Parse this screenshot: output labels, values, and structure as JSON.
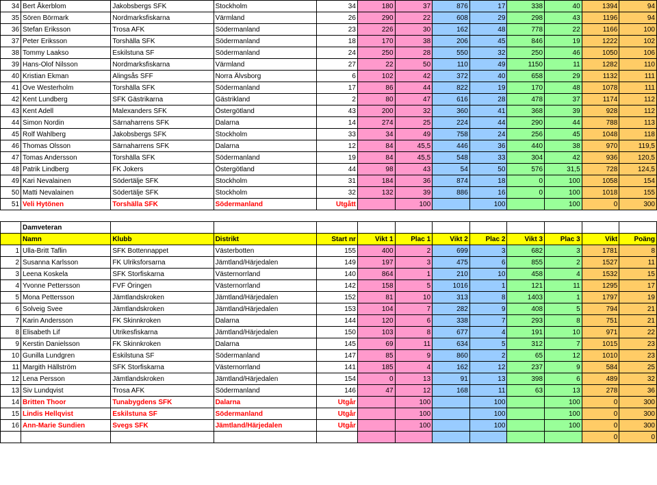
{
  "cols": {
    "widths": [
      22,
      90,
      110,
      110,
      44,
      40,
      40,
      40,
      40,
      40,
      40,
      40,
      40
    ]
  },
  "table1": {
    "rows": [
      {
        "n": "34",
        "name": "Bert Åkerblom",
        "club": "Jakobsbergs SFK",
        "dist": "Stockholm",
        "s": "34",
        "v1": "180",
        "p1": "37",
        "v2": "876",
        "p2": "17",
        "v3": "338",
        "p3": "40",
        "vk": "1394",
        "pt": "94"
      },
      {
        "n": "35",
        "name": "Sören Börmark",
        "club": "Nordmarksfiskarna",
        "dist": "Värmland",
        "s": "26",
        "v1": "290",
        "p1": "22",
        "v2": "608",
        "p2": "29",
        "v3": "298",
        "p3": "43",
        "vk": "1196",
        "pt": "94"
      },
      {
        "n": "36",
        "name": "Stefan Eriksson",
        "club": "Trosa AFK",
        "dist": "Södermanland",
        "s": "23",
        "v1": "226",
        "p1": "30",
        "v2": "162",
        "p2": "48",
        "v3": "778",
        "p3": "22",
        "vk": "1166",
        "pt": "100"
      },
      {
        "n": "37",
        "name": "Peter Eriksson",
        "club": "Torshälla SFK",
        "dist": "Södermanland",
        "s": "18",
        "v1": "170",
        "p1": "38",
        "v2": "206",
        "p2": "45",
        "v3": "846",
        "p3": "19",
        "vk": "1222",
        "pt": "102"
      },
      {
        "n": "38",
        "name": "Tommy Laakso",
        "club": "Eskilstuna SF",
        "dist": "Södermanland",
        "s": "24",
        "v1": "250",
        "p1": "28",
        "v2": "550",
        "p2": "32",
        "v3": "250",
        "p3": "46",
        "vk": "1050",
        "pt": "106"
      },
      {
        "n": "39",
        "name": "Hans-Olof Nilsson",
        "club": "Nordmarksfiskarna",
        "dist": "Värmland",
        "s": "27",
        "v1": "22",
        "p1": "50",
        "v2": "110",
        "p2": "49",
        "v3": "1150",
        "p3": "11",
        "vk": "1282",
        "pt": "110"
      },
      {
        "n": "40",
        "name": "Kristian Ekman",
        "club": "Alingsås SFF",
        "dist": "Norra Älvsborg",
        "s": "6",
        "v1": "102",
        "p1": "42",
        "v2": "372",
        "p2": "40",
        "v3": "658",
        "p3": "29",
        "vk": "1132",
        "pt": "111"
      },
      {
        "n": "41",
        "name": "Ove Westerholm",
        "club": "Torshälla SFK",
        "dist": "Södermanland",
        "s": "17",
        "v1": "86",
        "p1": "44",
        "v2": "822",
        "p2": "19",
        "v3": "170",
        "p3": "48",
        "vk": "1078",
        "pt": "111"
      },
      {
        "n": "42",
        "name": "Kent Lundberg",
        "club": "SFK Gästrikarna",
        "dist": "Gästrikland",
        "s": "2",
        "v1": "80",
        "p1": "47",
        "v2": "616",
        "p2": "28",
        "v3": "478",
        "p3": "37",
        "vk": "1174",
        "pt": "112"
      },
      {
        "n": "43",
        "name": "Kent Adell",
        "club": "Malexanders SFK",
        "dist": "Östergötland",
        "s": "43",
        "v1": "200",
        "p1": "32",
        "v2": "360",
        "p2": "41",
        "v3": "368",
        "p3": "39",
        "vk": "928",
        "pt": "112"
      },
      {
        "n": "44",
        "name": "Simon  Nordin",
        "club": "Särnaharrens  SFK",
        "dist": "Dalarna",
        "s": "14",
        "v1": "274",
        "p1": "25",
        "v2": "224",
        "p2": "44",
        "v3": "290",
        "p3": "44",
        "vk": "788",
        "pt": "113"
      },
      {
        "n": "45",
        "name": "Rolf Wahlberg",
        "club": "Jakobsbergs SFK",
        "dist": "Stockholm",
        "s": "33",
        "v1": "34",
        "p1": "49",
        "v2": "758",
        "p2": "24",
        "v3": "256",
        "p3": "45",
        "vk": "1048",
        "pt": "118"
      },
      {
        "n": "46",
        "name": "Thomas  Olsson",
        "club": "Särnaharrens  SFK",
        "dist": "Dalarna",
        "s": "12",
        "v1": "84",
        "p1": "45,5",
        "v2": "446",
        "p2": "36",
        "v3": "440",
        "p3": "38",
        "vk": "970",
        "pt": "119,5"
      },
      {
        "n": "47",
        "name": "Tomas Andersson",
        "club": "Torshälla SFK",
        "dist": "Södermanland",
        "s": "19",
        "v1": "84",
        "p1": "45,5",
        "v2": "548",
        "p2": "33",
        "v3": "304",
        "p3": "42",
        "vk": "936",
        "pt": "120,5"
      },
      {
        "n": "48",
        "name": "Patrik Lindberg",
        "club": "FK Jokers",
        "dist": "Östergötland",
        "s": "44",
        "v1": "98",
        "p1": "43",
        "v2": "54",
        "p2": "50",
        "v3": "576",
        "p3": "31,5",
        "vk": "728",
        "pt": "124,5"
      },
      {
        "n": "49",
        "name": "Kari Nevalainen",
        "club": "Södertälje SFK",
        "dist": "Stockholm",
        "s": "31",
        "v1": "184",
        "p1": "36",
        "v2": "874",
        "p2": "18",
        "v3": "0",
        "p3": "100",
        "vk": "1058",
        "pt": "154"
      },
      {
        "n": "50",
        "name": "Matti Nevalainen",
        "club": "Södertälje SFK",
        "dist": "Stockholm",
        "s": "32",
        "v1": "132",
        "p1": "39",
        "v2": "886",
        "p2": "16",
        "v3": "0",
        "p3": "100",
        "vk": "1018",
        "pt": "155"
      },
      {
        "n": "51",
        "name": "Veli Hytönen",
        "club": "Torshälla SFK",
        "dist": "Södermanland",
        "s": "Utgått",
        "v1": "",
        "p1": "100",
        "v2": "",
        "p2": "100",
        "v3": "",
        "p3": "100",
        "vk": "0",
        "pt": "300",
        "red": true
      }
    ]
  },
  "section2": {
    "title": "Damveteran",
    "headers": [
      "",
      "Namn",
      "Klubb",
      "Distrikt",
      "Start nr",
      "Vikt 1",
      "Plac 1",
      "Vikt 2",
      "Plac 2",
      "Vikt 3",
      "Plac 3",
      "Vikt",
      "Poäng"
    ],
    "rows": [
      {
        "n": "1",
        "name": "Ulla-Britt Taflin",
        "club": "SFK Bottennappet",
        "dist": "Västerbotten",
        "s": "155",
        "v1": "400",
        "p1": "2",
        "v2": "699",
        "p2": "3",
        "v3": "682",
        "p3": "3",
        "vk": "1781",
        "pt": "8"
      },
      {
        "n": "2",
        "name": "Susanna Karlsson",
        "club": "FK Ulriksforsarna",
        "dist": "Jämtland/Härjedalen",
        "s": "149",
        "v1": "197",
        "p1": "3",
        "v2": "475",
        "p2": "6",
        "v3": "855",
        "p3": "2",
        "vk": "1527",
        "pt": "11"
      },
      {
        "n": "3",
        "name": "Leena Koskela",
        "club": "SFK Storfiskarna",
        "dist": "Västernorrland",
        "s": "140",
        "v1": "864",
        "p1": "1",
        "v2": "210",
        "p2": "10",
        "v3": "458",
        "p3": "4",
        "vk": "1532",
        "pt": "15"
      },
      {
        "n": "4",
        "name": "Yvonne Pettersson",
        "club": "FVF Öringen",
        "dist": "Västernorrland",
        "s": "142",
        "v1": "158",
        "p1": "5",
        "v2": "1016",
        "p2": "1",
        "v3": "121",
        "p3": "11",
        "vk": "1295",
        "pt": "17"
      },
      {
        "n": "5",
        "name": "Mona Pettersson",
        "club": "Jämtlandskroken",
        "dist": "Jämtland/Härjedalen",
        "s": "152",
        "v1": "81",
        "p1": "10",
        "v2": "313",
        "p2": "8",
        "v3": "1403",
        "p3": "1",
        "vk": "1797",
        "pt": "19"
      },
      {
        "n": "6",
        "name": "Solveig Svee",
        "club": "Jämtlandskroken",
        "dist": "Jämtland/Härjedalen",
        "s": "153",
        "v1": "104",
        "p1": "7",
        "v2": "282",
        "p2": "9",
        "v3": "408",
        "p3": "5",
        "vk": "794",
        "pt": "21"
      },
      {
        "n": "7",
        "name": "Karin  Andersson",
        "club": "FK  Skinnkroken",
        "dist": "Dalarna",
        "s": "144",
        "v1": "120",
        "p1": "6",
        "v2": "338",
        "p2": "7",
        "v3": "293",
        "p3": "8",
        "vk": "751",
        "pt": "21"
      },
      {
        "n": "8",
        "name": "Elisabeth Lif",
        "club": "Utrikesfiskarna",
        "dist": "Jämtland/Härjedalen",
        "s": "150",
        "v1": "103",
        "p1": "8",
        "v2": "677",
        "p2": "4",
        "v3": "191",
        "p3": "10",
        "vk": "971",
        "pt": "22"
      },
      {
        "n": "9",
        "name": "Kerstin  Danielsson",
        "club": "FK  Skinnkroken",
        "dist": "Dalarna",
        "s": "145",
        "v1": "69",
        "p1": "11",
        "v2": "634",
        "p2": "5",
        "v3": "312",
        "p3": "7",
        "vk": "1015",
        "pt": "23"
      },
      {
        "n": "10",
        "name": "Gunilla Lundgren",
        "club": "Eskilstuna SF",
        "dist": "Södermanland",
        "s": "147",
        "v1": "85",
        "p1": "9",
        "v2": "860",
        "p2": "2",
        "v3": "65",
        "p3": "12",
        "vk": "1010",
        "pt": "23"
      },
      {
        "n": "11",
        "name": "Margith Hällström",
        "club": "SFK Storfiskarna",
        "dist": "Västernorrland",
        "s": "141",
        "v1": "185",
        "p1": "4",
        "v2": "162",
        "p2": "12",
        "v3": "237",
        "p3": "9",
        "vk": "584",
        "pt": "25"
      },
      {
        "n": "12",
        "name": "Lena Persson",
        "club": "Jämtlandskroken",
        "dist": "Jämtland/Härjedalen",
        "s": "154",
        "v1": "0",
        "p1": "13",
        "v2": "91",
        "p2": "13",
        "v3": "398",
        "p3": "6",
        "vk": "489",
        "pt": "32"
      },
      {
        "n": "13",
        "name": "Siv Lundqvist",
        "club": "Trosa AFK",
        "dist": "Södermanland",
        "s": "146",
        "v1": "47",
        "p1": "12",
        "v2": "168",
        "p2": "11",
        "v3": "63",
        "p3": "13",
        "vk": "278",
        "pt": "36"
      },
      {
        "n": "14",
        "name": "Britten  Thoor",
        "club": "Tunabygdens  SFK",
        "dist": "Dalarna",
        "s": "Utgår",
        "v1": "",
        "p1": "100",
        "v2": "",
        "p2": "100",
        "v3": "",
        "p3": "100",
        "vk": "0",
        "pt": "300",
        "red": true
      },
      {
        "n": "15",
        "name": "Lindis Hellqvist",
        "club": "Eskilstuna SF",
        "dist": "Södermanland",
        "s": "Utgår",
        "v1": "",
        "p1": "100",
        "v2": "",
        "p2": "100",
        "v3": "",
        "p3": "100",
        "vk": "0",
        "pt": "300",
        "red": true
      },
      {
        "n": "16",
        "name": "Ann-Marie Sundien",
        "club": "Svegs SFK",
        "dist": "Jämtland/Härjedalen",
        "s": "Utgår",
        "v1": "",
        "p1": "100",
        "v2": "",
        "p2": "100",
        "v3": "",
        "p3": "100",
        "vk": "0",
        "pt": "300",
        "red": true
      },
      {
        "n": "",
        "name": "",
        "club": "",
        "dist": "",
        "s": "",
        "v1": "",
        "p1": "",
        "v2": "",
        "p2": "",
        "v3": "",
        "p3": "",
        "vk": "0",
        "pt": "0"
      }
    ]
  }
}
